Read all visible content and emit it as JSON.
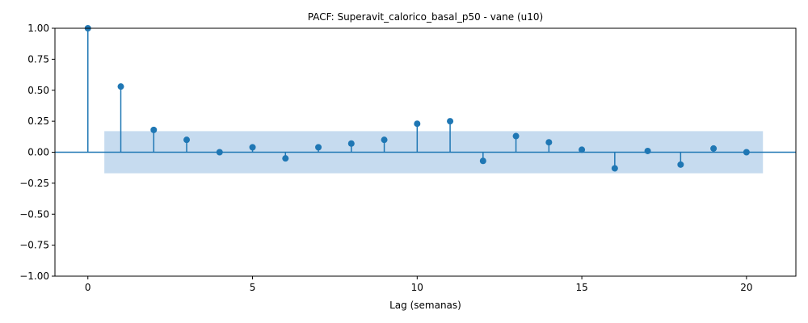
{
  "chart_data": {
    "type": "scatter",
    "subtype": "stem",
    "title": "PACF: Superavit_calorico_basal_p50 - vane (u10)",
    "xlabel": "Lag (semanas)",
    "ylabel": "",
    "xlim": [
      -1,
      21.5
    ],
    "ylim": [
      -1.0,
      1.0
    ],
    "xticks": [
      0,
      5,
      10,
      15,
      20
    ],
    "xtick_labels": [
      "0",
      "5",
      "10",
      "15",
      "20"
    ],
    "yticks": [
      -1.0,
      -0.75,
      -0.5,
      -0.25,
      0.0,
      0.25,
      0.5,
      0.75,
      1.0
    ],
    "ytick_labels": [
      "−1.00",
      "−0.75",
      "−0.50",
      "−0.25",
      "0.00",
      "0.25",
      "0.50",
      "0.75",
      "1.00"
    ],
    "grid": false,
    "legend": "none",
    "series": [
      {
        "x": [
          0,
          1,
          2,
          3,
          4,
          5,
          6,
          7,
          8,
          9,
          10,
          11,
          12,
          13,
          14,
          15,
          16,
          17,
          18,
          19,
          20
        ],
        "values": [
          1.0,
          0.53,
          0.18,
          0.1,
          0.0,
          0.04,
          -0.05,
          0.04,
          0.07,
          0.1,
          0.23,
          0.25,
          -0.07,
          0.13,
          0.08,
          0.02,
          -0.13,
          0.01,
          -0.1,
          0.03,
          0.0
        ]
      }
    ],
    "confidence_band": {
      "x": [
        0.5,
        20.5
      ],
      "lower": -0.17,
      "upper": 0.17
    },
    "colors": {
      "stem": "#1f77b4",
      "band": "#c6dbef",
      "zero_line": "#1f77b4"
    }
  }
}
